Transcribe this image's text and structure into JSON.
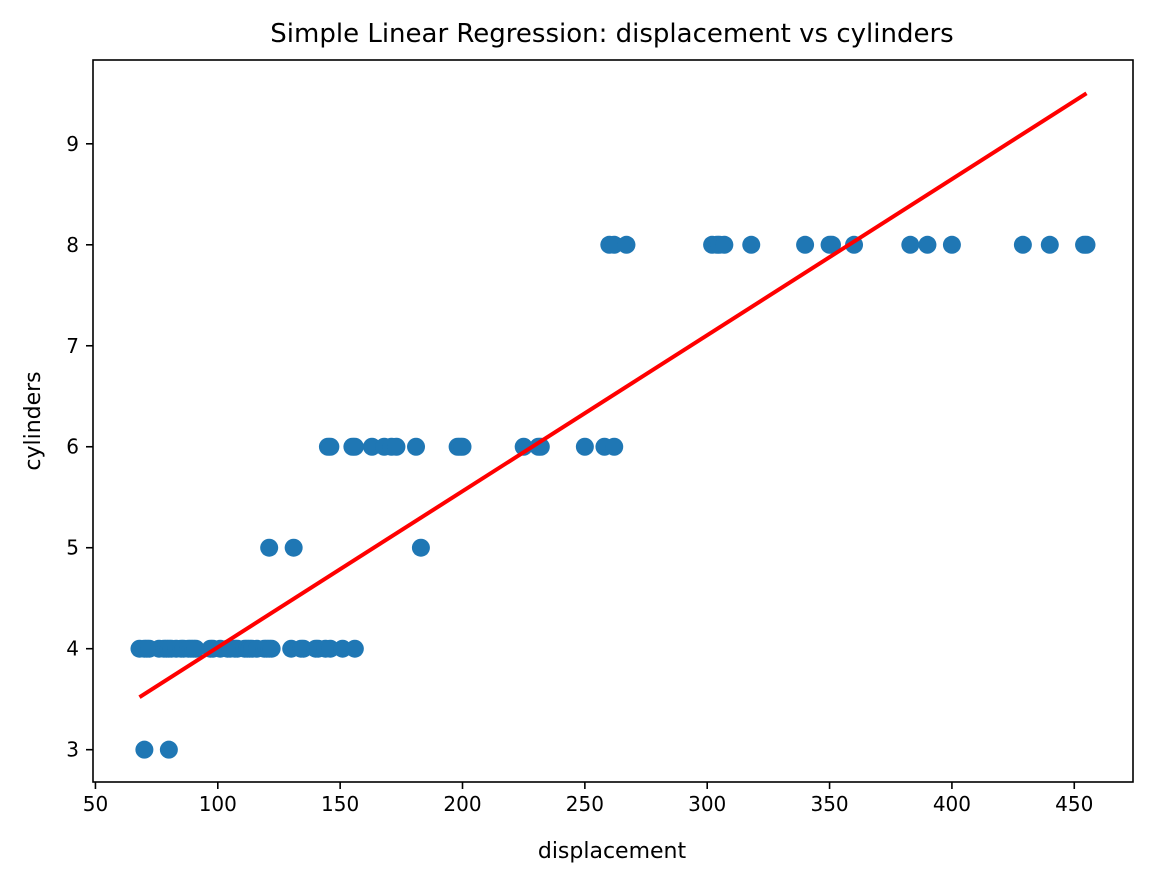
{
  "chart_data": {
    "type": "scatter",
    "title": "Simple Linear Regression: displacement vs cylinders",
    "xlabel": "displacement",
    "ylabel": "cylinders",
    "xlim": [
      49,
      474
    ],
    "ylim": [
      2.68,
      9.83
    ],
    "xticks": [
      50,
      100,
      150,
      200,
      250,
      300,
      350,
      400,
      450
    ],
    "yticks": [
      3,
      4,
      5,
      6,
      7,
      8,
      9
    ],
    "grid": false,
    "legend": "none",
    "colors": {
      "points": "#1f77b4",
      "fit_line": "#ff0000"
    },
    "series": [
      {
        "type": "scatter",
        "x": [
          68,
          70,
          71,
          72,
          76,
          78,
          79,
          80,
          81,
          83,
          85,
          86,
          88,
          89,
          90,
          91,
          97,
          98,
          101,
          104,
          105,
          107,
          108,
          111,
          112,
          113,
          114,
          116,
          119,
          120,
          121,
          122,
          130,
          134,
          135,
          140,
          141,
          144,
          146,
          151,
          156,
          70,
          80,
          121,
          131,
          183,
          145,
          146,
          155,
          156,
          163,
          168,
          171,
          173,
          181,
          198,
          199,
          200,
          225,
          231,
          232,
          250,
          258,
          262,
          260,
          262,
          267,
          302,
          304,
          305,
          307,
          318,
          340,
          350,
          351,
          360,
          383,
          390,
          400,
          429,
          440,
          454,
          455
        ],
        "y": [
          4,
          4,
          4,
          4,
          4,
          4,
          4,
          4,
          4,
          4,
          4,
          4,
          4,
          4,
          4,
          4,
          4,
          4,
          4,
          4,
          4,
          4,
          4,
          4,
          4,
          4,
          4,
          4,
          4,
          4,
          4,
          4,
          4,
          4,
          4,
          4,
          4,
          4,
          4,
          4,
          4,
          3,
          3,
          5,
          5,
          5,
          6,
          6,
          6,
          6,
          6,
          6,
          6,
          6,
          6,
          6,
          6,
          6,
          6,
          6,
          6,
          6,
          6,
          6,
          8,
          8,
          8,
          8,
          8,
          8,
          8,
          8,
          8,
          8,
          8,
          8,
          8,
          8,
          8,
          8,
          8,
          8,
          8
        ]
      },
      {
        "type": "line",
        "x": [
          68,
          455
        ],
        "y": [
          3.52,
          9.5
        ]
      }
    ]
  }
}
